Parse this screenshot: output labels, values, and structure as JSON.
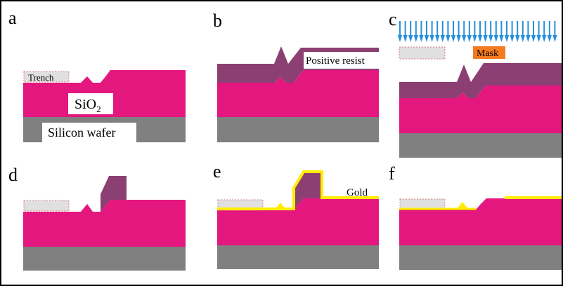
{
  "panels": {
    "a": {
      "letter": "a",
      "trench_label": "Trench",
      "oxide_label": "SiO",
      "oxide_subscript": "2",
      "wafer_label": "Silicon wafer"
    },
    "b": {
      "letter": "b",
      "resist_label": "Positive resist"
    },
    "c": {
      "letter": "c",
      "mask_label": "Mask"
    },
    "d": {
      "letter": "d"
    },
    "e": {
      "letter": "e",
      "gold_label": "Gold"
    },
    "f": {
      "letter": "f"
    }
  },
  "colors": {
    "oxide": "#e4177e",
    "silicon": "#808080",
    "resist": "#8c3f72",
    "gold": "#ffec00",
    "mask": "#f47c20",
    "uv": "#2a8fd8",
    "trench_box": "#e0e0e0",
    "trench_border": "#d98080",
    "frame": "#000000"
  },
  "icons": {
    "uv_arrows": "down-arrow-icon"
  }
}
